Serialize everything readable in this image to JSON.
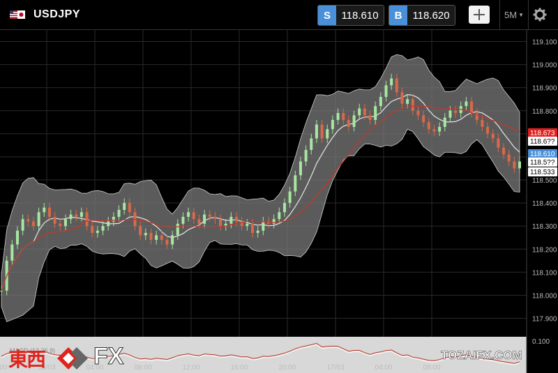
{
  "toolbar": {
    "symbol": "USDJPY",
    "sell_label": "S",
    "sell_price": "118.610",
    "buy_label": "B",
    "buy_price": "118.620",
    "timeframe": "5M",
    "icons": [
      "us-jp-flag-icon",
      "crosshair-icon",
      "chevron-down-icon",
      "gear-icon"
    ]
  },
  "colors": {
    "background": "#000000",
    "accent": "#4a90d9",
    "ma_line": "#c0392b",
    "band_fill": "#7a7a7a",
    "candle_up": "#a8e6a1",
    "candle_down": "#d9694a",
    "marker_red": "#e01f1f",
    "marker_blue": "#4a90d9"
  },
  "chart_data": {
    "type": "candlestick",
    "instrument": "USDJPY",
    "interval": "5M",
    "y_axis_ticks": [
      "119.100",
      "119.000",
      "118.900",
      "118.800",
      "118.700",
      "118.600",
      "118.500",
      "118.400",
      "118.300",
      "118.200",
      "118.100",
      "118.000",
      "117.900"
    ],
    "x_axis_ticks": [
      "16:00",
      "16/03",
      "04:00",
      "08:00",
      "12:00",
      "16:00",
      "20:00",
      "17/03",
      "04:00",
      "08:00"
    ],
    "price_markers": [
      {
        "label": "118.673",
        "color": "red"
      },
      {
        "label": "118.6??",
        "color": "white"
      },
      {
        "label": "118.610",
        "color": "blue"
      },
      {
        "label": "118.5??",
        "color": "white"
      },
      {
        "label": "118.533",
        "color": "white"
      }
    ],
    "indicators": [
      "Bollinger Bands",
      "Moving Average",
      "MACD"
    ],
    "close_series": [
      118.02,
      118.15,
      118.22,
      118.28,
      118.33,
      118.32,
      118.3,
      118.36,
      118.38,
      118.34,
      118.31,
      118.3,
      118.33,
      118.35,
      118.34,
      118.36,
      118.3,
      118.27,
      118.28,
      118.3,
      118.32,
      118.34,
      118.37,
      118.4,
      118.36,
      118.3,
      118.26,
      118.27,
      118.24,
      118.26,
      118.24,
      118.22,
      118.26,
      118.31,
      118.34,
      118.36,
      118.33,
      118.31,
      118.35,
      118.34,
      118.33,
      118.3,
      118.31,
      118.34,
      118.32,
      118.3,
      118.31,
      118.27,
      118.28,
      118.32,
      118.31,
      118.33,
      118.36,
      118.4,
      118.45,
      118.52,
      118.58,
      118.63,
      118.68,
      118.74,
      118.68,
      118.72,
      118.76,
      118.79,
      118.76,
      118.73,
      118.78,
      118.81,
      118.78,
      118.76,
      118.82,
      118.86,
      118.91,
      118.94,
      118.88,
      118.83,
      118.85,
      118.8,
      118.78,
      118.75,
      118.72,
      118.71,
      118.73,
      118.77,
      118.8,
      118.79,
      118.82,
      118.84,
      118.79,
      118.76,
      118.73,
      118.7,
      118.68,
      118.64,
      118.61,
      118.58,
      118.55,
      118.58
    ],
    "macd_axis": [
      "0.100"
    ]
  },
  "watermark": {
    "left_kanji": "東西",
    "left_fx": "FX",
    "left_icon": "diamond-logo-icon",
    "macd_label": "MACD (12,26,9)",
    "right_text": "TOZAIFX.COM"
  }
}
